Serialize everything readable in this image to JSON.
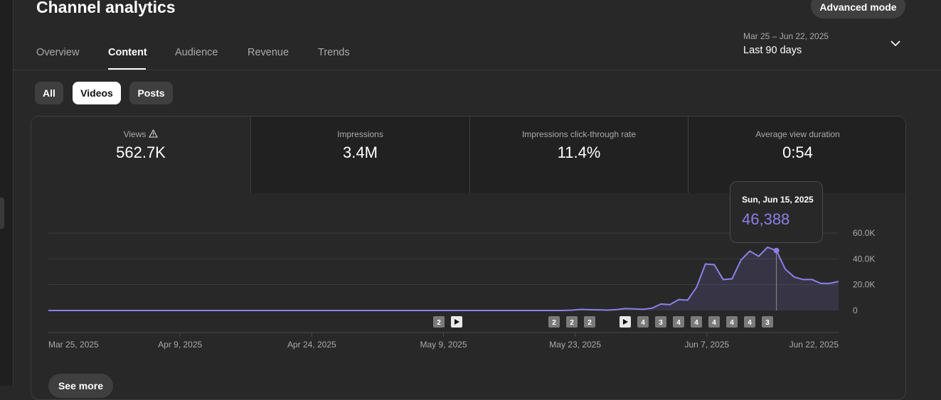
{
  "header": {
    "title": "Channel analytics",
    "advanced_label": "Advanced mode"
  },
  "tabs": [
    {
      "label": "Overview"
    },
    {
      "label": "Content"
    },
    {
      "label": "Audience"
    },
    {
      "label": "Revenue"
    },
    {
      "label": "Trends"
    }
  ],
  "date_range": {
    "sub": "Mar 25 – Jun 22, 2025",
    "main": "Last 90 days"
  },
  "filters": [
    {
      "label": "All"
    },
    {
      "label": "Videos"
    },
    {
      "label": "Posts"
    }
  ],
  "metrics": [
    {
      "label": "Views",
      "value": "562.7K"
    },
    {
      "label": "Impressions",
      "value": "3.4M"
    },
    {
      "label": "Impressions click-through rate",
      "value": "11.4%"
    },
    {
      "label": "Average view duration",
      "value": "0:54"
    }
  ],
  "tooltip": {
    "date": "Sun, Jun 15, 2025",
    "value": "46,388"
  },
  "see_more": "See more",
  "colors": {
    "accent": "#8c80e8",
    "background": "#282828",
    "card": "#212121"
  },
  "chart_data": {
    "type": "area",
    "y_ticks": [
      "0",
      "20.0K",
      "40.0K",
      "60.0K"
    ],
    "ylim": [
      0,
      60000
    ],
    "x_tick_labels": [
      "Mar 25, 2025",
      "Apr 9, 2025",
      "Apr 24, 2025",
      "May 9, 2025",
      "May 23, 2025",
      "Jun 7, 2025",
      "Jun 22, 2025"
    ],
    "values": [
      0,
      0,
      0,
      0,
      0,
      0,
      0,
      0,
      0,
      0,
      0,
      0,
      0,
      0,
      0,
      0,
      0,
      0,
      0,
      0,
      0,
      0,
      0,
      0,
      0,
      0,
      0,
      0,
      0,
      0,
      0,
      0,
      0,
      0,
      0,
      0,
      0,
      0,
      0,
      0,
      0,
      0,
      0,
      0,
      0,
      0,
      0,
      0,
      0,
      0,
      0,
      0,
      0,
      0,
      0,
      0,
      0,
      0,
      0,
      300,
      800,
      600,
      500,
      300,
      700,
      1500,
      1200,
      900,
      1800,
      5000,
      4500,
      8500,
      8000,
      18000,
      36000,
      35500,
      24000,
      24500,
      39000,
      46000,
      42000,
      49000,
      46388,
      32000,
      26000,
      24000,
      24000,
      21000,
      21000,
      22500
    ],
    "selected_index": 82,
    "markers": [
      {
        "type": "count",
        "label": "2"
      },
      {
        "type": "play"
      },
      {
        "type": "count",
        "label": "2"
      },
      {
        "type": "count",
        "label": "2"
      },
      {
        "type": "count",
        "label": "2"
      },
      {
        "type": "play"
      },
      {
        "type": "count",
        "label": "4"
      },
      {
        "type": "count",
        "label": "3"
      },
      {
        "type": "count",
        "label": "4"
      },
      {
        "type": "count",
        "label": "4"
      },
      {
        "type": "count",
        "label": "4"
      },
      {
        "type": "count",
        "label": "4"
      },
      {
        "type": "count",
        "label": "4"
      },
      {
        "type": "count",
        "label": "3"
      }
    ]
  }
}
